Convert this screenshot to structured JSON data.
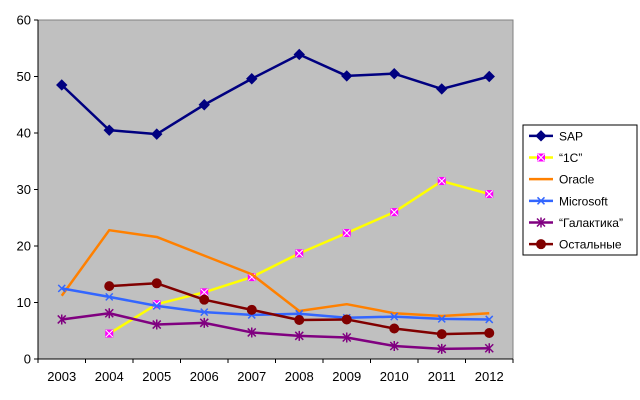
{
  "chart_data": {
    "type": "line",
    "title": "",
    "xlabel": "",
    "ylabel": "",
    "ylim": [
      0,
      60
    ],
    "yticks": [
      0,
      10,
      20,
      30,
      40,
      50,
      60
    ],
    "grid": "none",
    "plot_background": "#c0c0c0",
    "legend_position": "right",
    "categories": [
      "2003",
      "2004",
      "2005",
      "2006",
      "2007",
      "2008",
      "2009",
      "2010",
      "2011",
      "2012"
    ],
    "series": [
      {
        "name": "SAP",
        "color": "#000080",
        "marker": "diamond",
        "values": [
          48.5,
          40.5,
          39.8,
          45.0,
          49.6,
          53.9,
          50.1,
          50.5,
          47.8,
          50.0
        ]
      },
      {
        "name": "“1С”",
        "color": "#ffff00",
        "marker": "square-x",
        "marker_color": "#ff00ff",
        "values": [
          null,
          4.5,
          9.7,
          11.8,
          14.5,
          18.7,
          22.3,
          26.0,
          31.5,
          29.2
        ]
      },
      {
        "name": "Oracle",
        "color": "#ff8000",
        "marker": "none",
        "values": [
          11.2,
          22.8,
          21.6,
          18.3,
          15.0,
          8.5,
          9.7,
          8.1,
          7.6,
          8.1
        ]
      },
      {
        "name": "Microsoft",
        "color": "#3366ff",
        "marker": "x",
        "values": [
          12.5,
          11.0,
          9.4,
          8.3,
          7.8,
          8.0,
          7.3,
          7.5,
          7.1,
          7.0
        ]
      },
      {
        "name": "“Галактика”",
        "color": "#800080",
        "marker": "star",
        "values": [
          7.0,
          8.1,
          6.1,
          6.4,
          4.7,
          4.1,
          3.8,
          2.3,
          1.8,
          1.9
        ]
      },
      {
        "name": "Остальные",
        "color": "#800000",
        "marker": "circle",
        "values": [
          null,
          12.9,
          13.4,
          10.5,
          8.7,
          6.9,
          7.0,
          5.4,
          4.4,
          4.6
        ]
      }
    ]
  }
}
